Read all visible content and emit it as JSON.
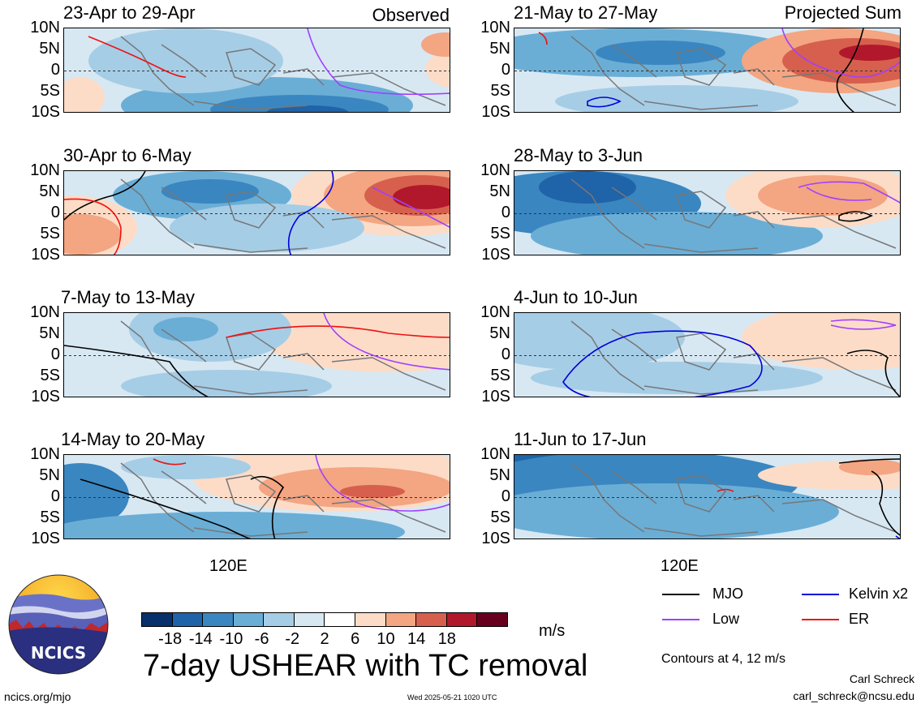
{
  "chart_data": {
    "type": "heatmap",
    "title": "7-day USHEAR with TC removal",
    "variable": "USHEAR",
    "units": "m/s",
    "yticks": [
      "10N",
      "5N",
      "0",
      "5S",
      "10S"
    ],
    "xtick_label": "120E",
    "columns": [
      {
        "label": "Observed",
        "panels": [
          "23-Apr to 29-Apr",
          "30-Apr to 6-May",
          "7-May to 13-May",
          "14-May to 20-May"
        ]
      },
      {
        "label": "Projected Sum",
        "panels": [
          "21-May to 27-May",
          "28-May to 3-Jun",
          "4-Jun to 10-Jun",
          "11-Jun to 17-Jun"
        ]
      }
    ],
    "colorbar": {
      "levels": [
        "-18",
        "-14",
        "-10",
        "-6",
        "-2",
        "2",
        "6",
        "10",
        "14",
        "18"
      ],
      "colors": [
        "#08306b",
        "#1f63a8",
        "#3a86c0",
        "#6aaed6",
        "#a6cde6",
        "#d7e8f3",
        "#ffffff",
        "#fcdcc7",
        "#f4a582",
        "#d6604d",
        "#b2182b",
        "#67001f"
      ]
    },
    "legend": [
      {
        "name": "MJO",
        "color": "#000000"
      },
      {
        "name": "Kelvin x2",
        "color": "#0000dd"
      },
      {
        "name": "Low",
        "color": "#a040ff"
      },
      {
        "name": "ER",
        "color": "#ee1111"
      }
    ],
    "contour_note": "Contours at 4, 12 m/s"
  },
  "branding": {
    "logo_text": "NCICS",
    "url": "ncics.org/mjo",
    "timestamp": "Wed 2025-05-21 1020 UTC",
    "author": "Carl Schreck",
    "email": "carl_schreck@ncsu.edu"
  }
}
